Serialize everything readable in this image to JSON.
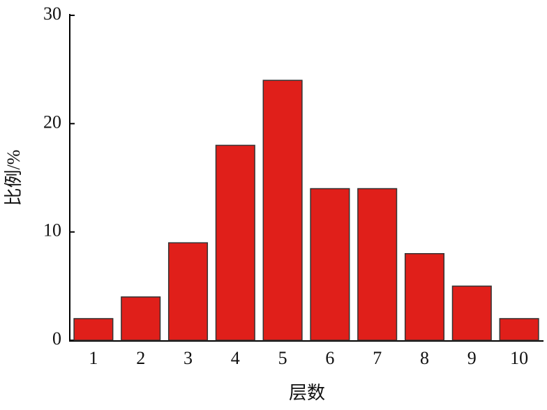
{
  "chart_data": {
    "type": "bar",
    "x_label": "层数",
    "y_label": "比例/%",
    "categories": [
      "1",
      "2",
      "3",
      "4",
      "5",
      "6",
      "7",
      "8",
      "9",
      "10"
    ],
    "values": [
      2,
      4,
      9,
      18,
      24,
      14,
      14,
      8,
      5,
      2
    ],
    "color": "#e01f1a",
    "ylim": [
      0,
      30
    ],
    "yticks": [
      0,
      10,
      20,
      30
    ]
  }
}
